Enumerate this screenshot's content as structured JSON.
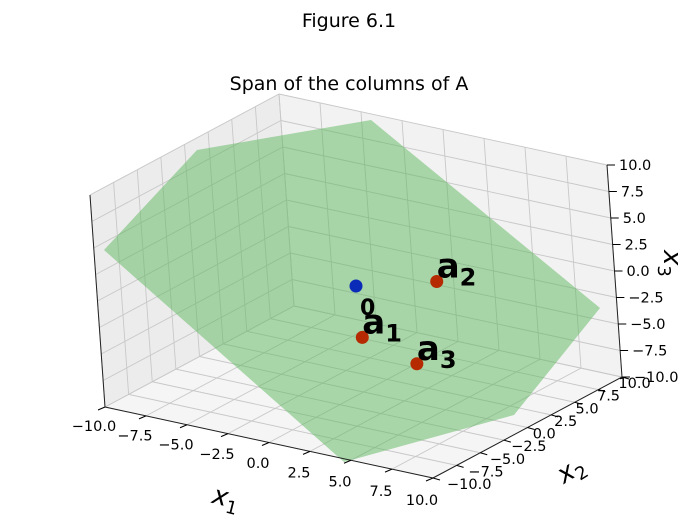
{
  "figure": {
    "title": "Figure 6.1"
  },
  "chart_data": {
    "type": "surface3d",
    "title": "Span of the columns of A",
    "xlabel": "x",
    "xlabel_sub": "1",
    "ylabel": "x",
    "ylabel_sub": "2",
    "zlabel": "x",
    "zlabel_sub": "3",
    "xlim": [
      -10,
      10
    ],
    "ylim": [
      -10,
      10
    ],
    "zlim": [
      -10,
      10
    ],
    "xticks": [
      -10,
      -7.5,
      -5,
      -2.5,
      0,
      2.5,
      5,
      7.5,
      10
    ],
    "yticks": [
      -10,
      -7.5,
      -5,
      -2.5,
      0,
      2.5,
      5,
      7.5,
      10
    ],
    "zticks": [
      -10,
      -7.5,
      -5,
      -2.5,
      0,
      2.5,
      5,
      7.5,
      10
    ],
    "xtick_labels": [
      "−10.0",
      "−7.5",
      "−5.0",
      "−2.5",
      "0.0",
      "2.5",
      "5.0",
      "7.5",
      "10.0"
    ],
    "ytick_labels": [
      "−10.0",
      "−7.5",
      "−5.0",
      "−2.5",
      "0.0",
      "2.5",
      "5.0",
      "7.5",
      "10.0"
    ],
    "ztick_labels": [
      "−10.0",
      "−7.5",
      "−5.0",
      "−2.5",
      "0.0",
      "2.5",
      "5.0",
      "7.5",
      "10.0"
    ],
    "grid": true,
    "plane_color": "#5cb85c",
    "points": [
      {
        "name": "0",
        "label_main": "0",
        "label_sub": "",
        "x": 0,
        "y": 0,
        "z": 0,
        "color": "#0a2ab8",
        "label_style": "small"
      },
      {
        "name": "a1",
        "label_main": "a",
        "label_sub": "1",
        "x": 1.5,
        "y": -2.2,
        "z": -3.3,
        "color": "#b52a00",
        "label_style": "big"
      },
      {
        "name": "a2",
        "label_main": "a",
        "label_sub": "2",
        "x": 1.8,
        "y": 5.3,
        "z": -1.5,
        "color": "#b52a00",
        "label_style": "big"
      },
      {
        "name": "a3",
        "label_main": "a",
        "label_sub": "3",
        "x": 4.4,
        "y": -1.6,
        "z": -5.1,
        "color": "#b52a00",
        "label_style": "big"
      }
    ]
  }
}
